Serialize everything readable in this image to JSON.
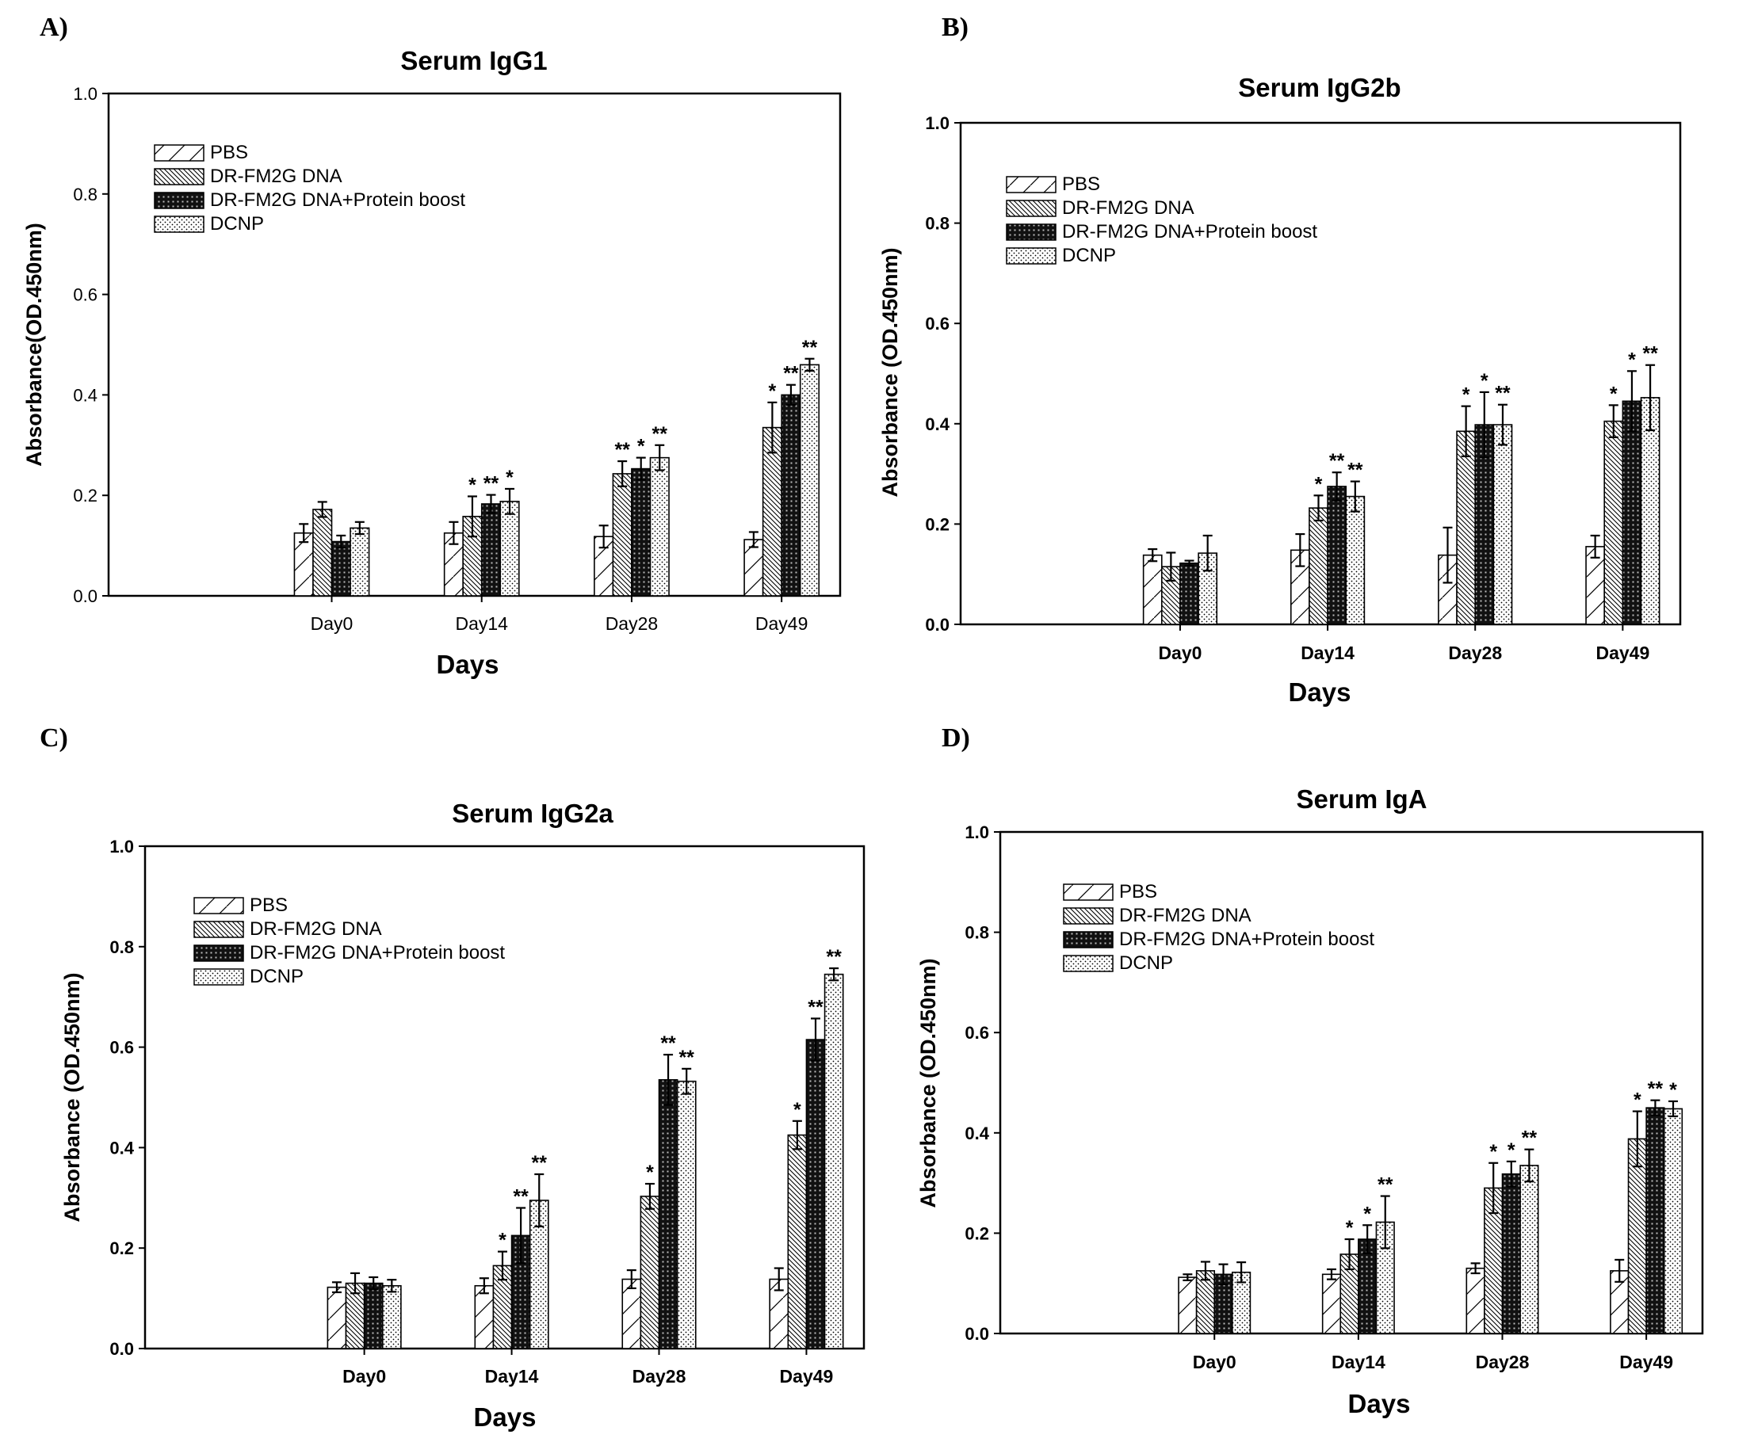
{
  "chart_data": [
    {
      "type": "bar",
      "panel_label": "A)",
      "title": "Serum IgG1",
      "xlabel": "Days",
      "ylabel": "Absorbance(OD.450nm)",
      "ylim": [
        0,
        1.0
      ],
      "yticks": [
        "0.0",
        "0.2",
        "0.4",
        "0.6",
        "0.8",
        "1.0"
      ],
      "bold_ticks": false,
      "legend_position": "upper-left",
      "categories": [
        "Day0",
        "Day14",
        "Day28",
        "Day49"
      ],
      "series": [
        {
          "name": "PBS",
          "pattern": "pat-sparse",
          "values": [
            0.125,
            0.125,
            0.118,
            0.112
          ],
          "errors": [
            0.018,
            0.022,
            0.022,
            0.015
          ],
          "sig": [
            "",
            "",
            "",
            ""
          ]
        },
        {
          "name": "DR-FM2G DNA",
          "pattern": "pat-dense",
          "values": [
            0.172,
            0.158,
            0.243,
            0.335
          ],
          "errors": [
            0.015,
            0.04,
            0.025,
            0.05
          ],
          "sig": [
            "",
            "*",
            "**",
            "*"
          ]
        },
        {
          "name": "DR-FM2G DNA+Protein boost",
          "pattern": "pat-dark",
          "values": [
            0.108,
            0.183,
            0.253,
            0.4
          ],
          "errors": [
            0.012,
            0.018,
            0.022,
            0.02
          ],
          "sig": [
            "",
            "**",
            "*",
            "**"
          ]
        },
        {
          "name": "DCNP",
          "pattern": "pat-dots",
          "values": [
            0.135,
            0.188,
            0.275,
            0.46
          ],
          "errors": [
            0.012,
            0.025,
            0.025,
            0.012
          ],
          "sig": [
            "",
            "*",
            "**",
            "**"
          ]
        }
      ]
    },
    {
      "type": "bar",
      "panel_label": "B)",
      "title": "Serum IgG2b",
      "xlabel": "Days",
      "ylabel": "Absorbance (OD.450nm)",
      "ylim": [
        0,
        1.0
      ],
      "yticks": [
        "0.0",
        "0.2",
        "0.4",
        "0.6",
        "0.8",
        "1.0"
      ],
      "bold_ticks": true,
      "legend_position": "upper-left",
      "categories": [
        "Day0",
        "Day14",
        "Day28",
        "Day49"
      ],
      "series": [
        {
          "name": "PBS",
          "pattern": "pat-sparse",
          "values": [
            0.138,
            0.148,
            0.138,
            0.155
          ],
          "errors": [
            0.012,
            0.032,
            0.055,
            0.022
          ],
          "sig": [
            "",
            "",
            "",
            ""
          ]
        },
        {
          "name": "DR-FM2G DNA",
          "pattern": "pat-dense",
          "values": [
            0.115,
            0.232,
            0.385,
            0.405
          ],
          "errors": [
            0.028,
            0.025,
            0.05,
            0.032
          ],
          "sig": [
            "",
            "*",
            "*",
            "*"
          ]
        },
        {
          "name": "DR-FM2G DNA+Protein boost",
          "pattern": "pat-dark",
          "values": [
            0.122,
            0.275,
            0.398,
            0.445
          ],
          "errors": [
            0.005,
            0.028,
            0.065,
            0.06
          ],
          "sig": [
            "",
            "**",
            "*",
            "*"
          ]
        },
        {
          "name": "DCNP",
          "pattern": "pat-dots",
          "values": [
            0.142,
            0.255,
            0.398,
            0.452
          ],
          "errors": [
            0.035,
            0.03,
            0.04,
            0.065
          ],
          "sig": [
            "",
            "**",
            "**",
            "**"
          ]
        }
      ]
    },
    {
      "type": "bar",
      "panel_label": "C)",
      "title": "Serum IgG2a",
      "xlabel": "Days",
      "ylabel": "Absorbance (OD.450nm)",
      "ylim": [
        0,
        1.0
      ],
      "yticks": [
        "0.0",
        "0.2",
        "0.4",
        "0.6",
        "0.8",
        "1.0"
      ],
      "bold_ticks": true,
      "legend_position": "upper-left",
      "categories": [
        "Day0",
        "Day14",
        "Day28",
        "Day49"
      ],
      "series": [
        {
          "name": "PBS",
          "pattern": "pat-sparse",
          "values": [
            0.122,
            0.125,
            0.138,
            0.138
          ],
          "errors": [
            0.01,
            0.015,
            0.018,
            0.022
          ],
          "sig": [
            "",
            "",
            "",
            ""
          ]
        },
        {
          "name": "DR-FM2G DNA",
          "pattern": "pat-dense",
          "values": [
            0.13,
            0.165,
            0.303,
            0.425
          ],
          "errors": [
            0.02,
            0.028,
            0.025,
            0.028
          ],
          "sig": [
            "",
            "*",
            "*",
            "*"
          ]
        },
        {
          "name": "DR-FM2G DNA+Protein boost",
          "pattern": "pat-dark",
          "values": [
            0.13,
            0.225,
            0.535,
            0.615
          ],
          "errors": [
            0.012,
            0.055,
            0.05,
            0.042
          ],
          "sig": [
            "",
            "**",
            "**",
            "**"
          ]
        },
        {
          "name": "DCNP",
          "pattern": "pat-dots",
          "values": [
            0.125,
            0.295,
            0.532,
            0.745
          ],
          "errors": [
            0.012,
            0.052,
            0.025,
            0.012
          ],
          "sig": [
            "",
            "**",
            "**",
            "**"
          ]
        }
      ]
    },
    {
      "type": "bar",
      "panel_label": "D)",
      "title": "Serum IgA",
      "xlabel": "Days",
      "ylabel": "Absorbance (OD.450nm)",
      "ylim": [
        0,
        1.0
      ],
      "yticks": [
        "0.0",
        "0.2",
        "0.4",
        "0.6",
        "0.8",
        "1.0"
      ],
      "bold_ticks": true,
      "legend_position": "upper-left",
      "categories": [
        "Day0",
        "Day14",
        "Day28",
        "Day49"
      ],
      "series": [
        {
          "name": "PBS",
          "pattern": "pat-sparse",
          "values": [
            0.112,
            0.118,
            0.13,
            0.125
          ],
          "errors": [
            0.006,
            0.01,
            0.01,
            0.022
          ],
          "sig": [
            "",
            "",
            "",
            ""
          ]
        },
        {
          "name": "DR-FM2G DNA",
          "pattern": "pat-dense",
          "values": [
            0.125,
            0.158,
            0.29,
            0.388
          ],
          "errors": [
            0.018,
            0.03,
            0.05,
            0.055
          ],
          "sig": [
            "",
            "*",
            "*",
            "*"
          ]
        },
        {
          "name": "DR-FM2G DNA+Protein boost",
          "pattern": "pat-dark",
          "values": [
            0.118,
            0.188,
            0.318,
            0.45
          ],
          "errors": [
            0.02,
            0.028,
            0.025,
            0.015
          ],
          "sig": [
            "",
            "*",
            "*",
            "**"
          ]
        },
        {
          "name": "DCNP",
          "pattern": "pat-dots",
          "values": [
            0.122,
            0.222,
            0.335,
            0.448
          ],
          "errors": [
            0.02,
            0.052,
            0.032,
            0.015
          ],
          "sig": [
            "",
            "**",
            "**",
            "*"
          ]
        }
      ]
    }
  ]
}
